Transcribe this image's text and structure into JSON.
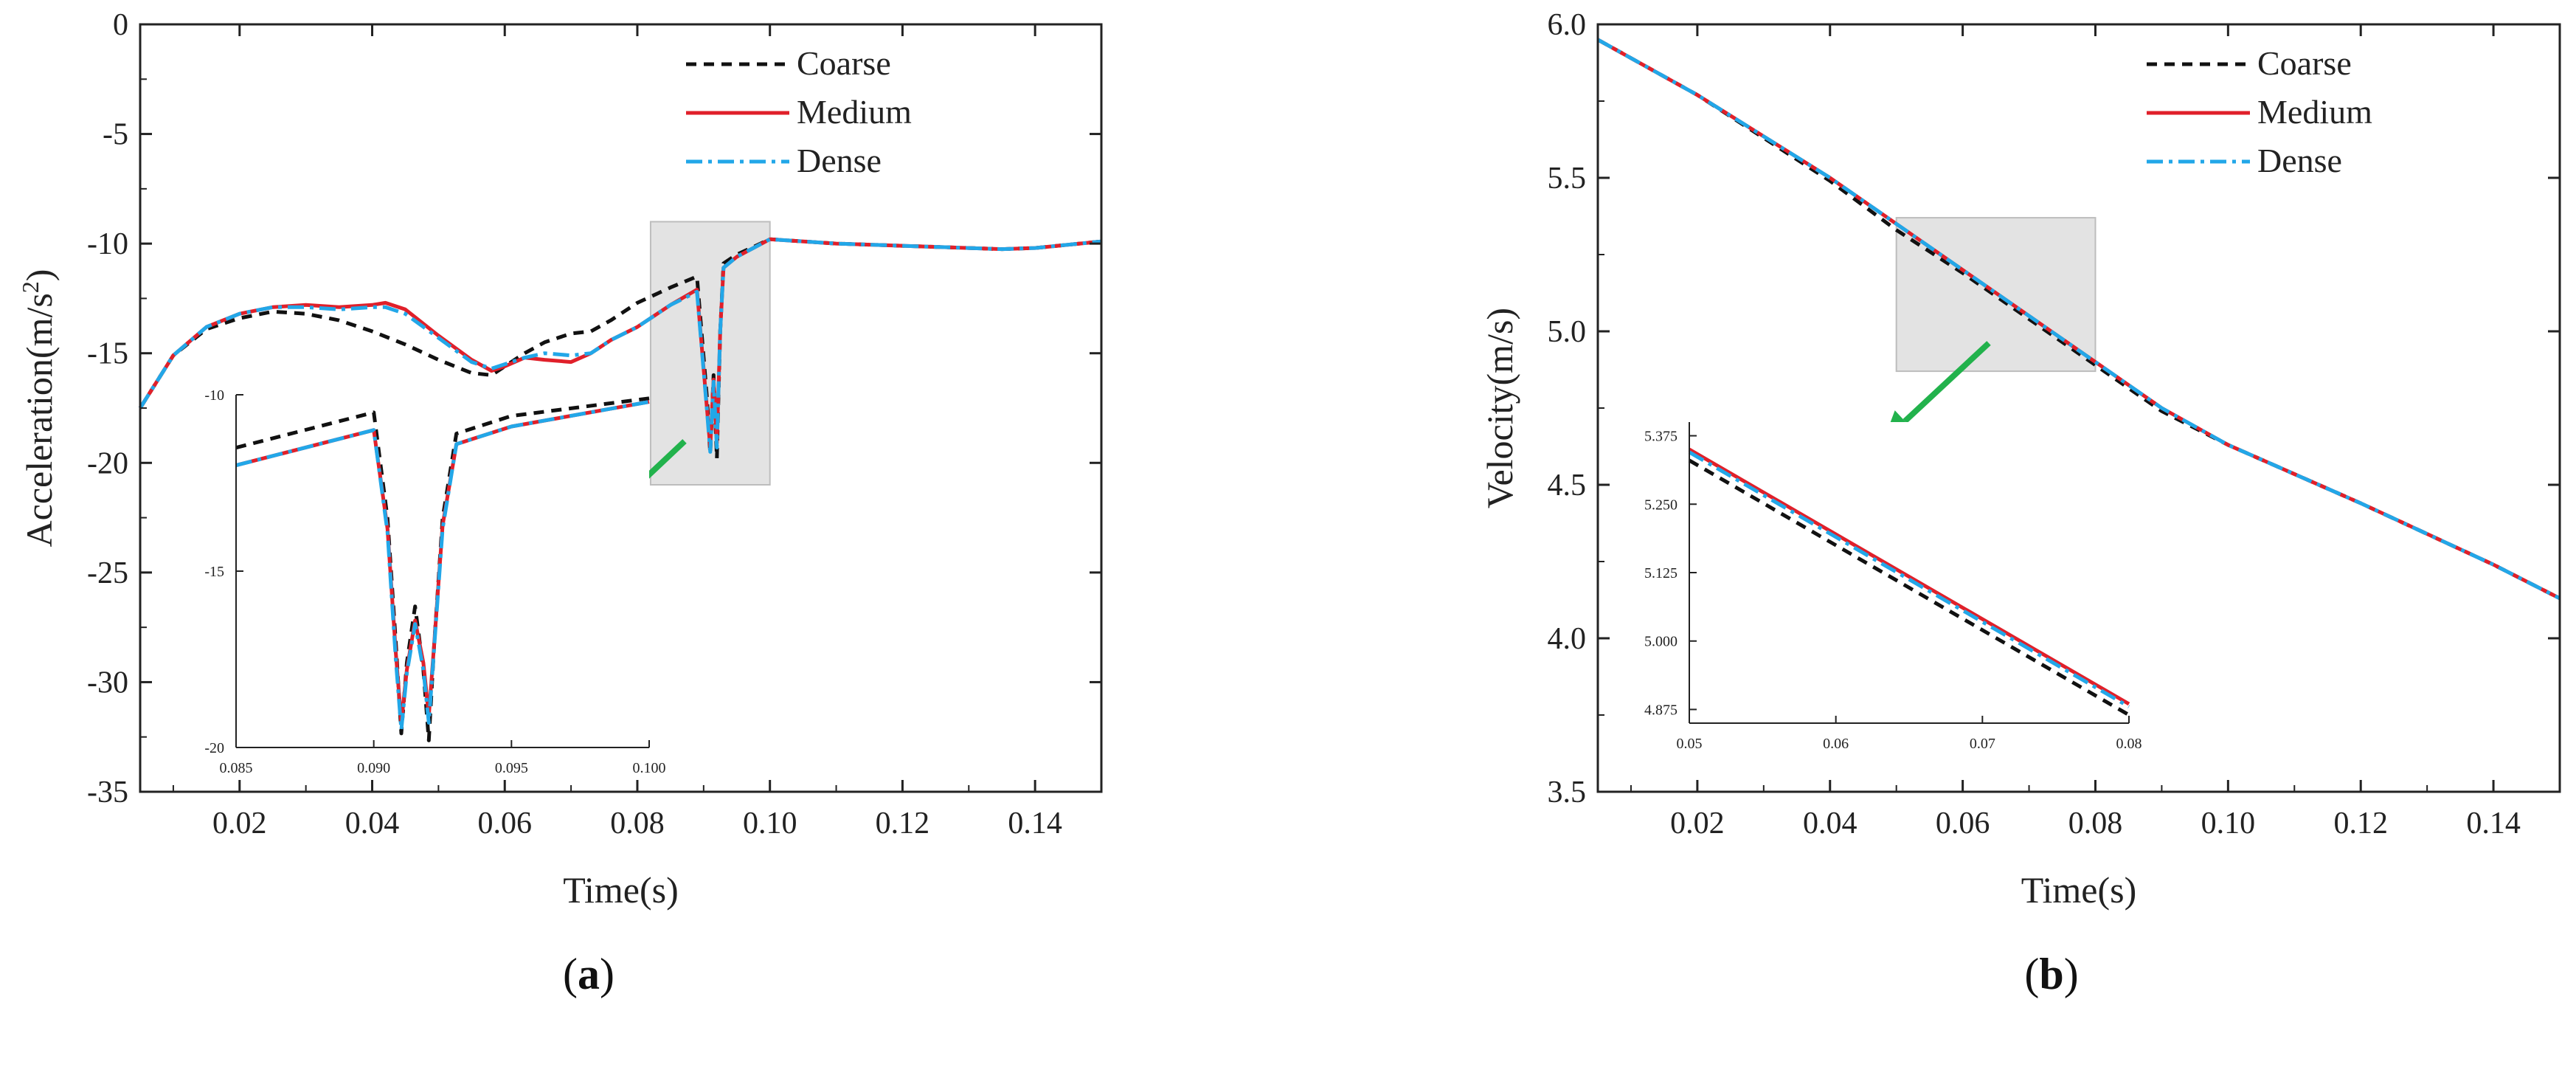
{
  "colors": {
    "coarse": "#111111",
    "medium": "#e0202a",
    "dense": "#22a7e8",
    "arrow": "#22b24c",
    "highlight": "#d9d9d9"
  },
  "legend": [
    "Coarse",
    "Medium",
    "Dense"
  ],
  "chart_data": [
    {
      "type": "line",
      "caption_letter": "a",
      "xlabel": "Time(s)",
      "ylabel_main": "Acceleration(m/s",
      "ylabel_sup": "2",
      "ylabel_tail": ")",
      "xlim": [
        0.005,
        0.15
      ],
      "ylim": [
        -35,
        0
      ],
      "xticks": [
        "0.02",
        "0.04",
        "0.06",
        "0.08",
        "0.10",
        "0.12",
        "0.14"
      ],
      "yticks": [
        "0",
        "-5",
        "-10",
        "-15",
        "-20",
        "-25",
        "-30",
        "-35"
      ],
      "highlight_box": {
        "x": [
          0.082,
          0.1
        ],
        "y": [
          -21,
          -9
        ]
      },
      "series": [
        {
          "name": "Coarse",
          "style": "dashed",
          "x": [
            0.005,
            0.01,
            0.015,
            0.02,
            0.025,
            0.03,
            0.035,
            0.04,
            0.045,
            0.05,
            0.055,
            0.058,
            0.06,
            0.063,
            0.066,
            0.07,
            0.073,
            0.076,
            0.08,
            0.085,
            0.089,
            0.0905,
            0.091,
            0.0915,
            0.092,
            0.0925,
            0.093,
            0.095,
            0.1,
            0.11,
            0.12,
            0.13,
            0.135,
            0.14,
            0.15
          ],
          "y": [
            -17.5,
            -15.1,
            -13.9,
            -13.4,
            -13.1,
            -13.2,
            -13.5,
            -14,
            -14.6,
            -15.3,
            -15.9,
            -16,
            -15.6,
            -15,
            -14.5,
            -14.1,
            -14,
            -13.5,
            -12.7,
            -12,
            -11.5,
            -17,
            -19.6,
            -16,
            -19.8,
            -14,
            -10.9,
            -10.5,
            -9.8,
            -10,
            -10.1,
            -10.2,
            -10.25,
            -10.2,
            -9.9
          ]
        },
        {
          "name": "Medium",
          "style": "solid",
          "x": [
            0.005,
            0.01,
            0.015,
            0.02,
            0.025,
            0.03,
            0.035,
            0.04,
            0.042,
            0.045,
            0.05,
            0.055,
            0.058,
            0.06,
            0.063,
            0.066,
            0.07,
            0.073,
            0.076,
            0.08,
            0.085,
            0.089,
            0.0905,
            0.091,
            0.0915,
            0.092,
            0.0925,
            0.093,
            0.095,
            0.1,
            0.11,
            0.12,
            0.13,
            0.135,
            0.14,
            0.15
          ],
          "y": [
            -17.5,
            -15.1,
            -13.8,
            -13.2,
            -12.9,
            -12.8,
            -12.9,
            -12.8,
            -12.7,
            -13,
            -14.2,
            -15.3,
            -15.8,
            -15.6,
            -15.2,
            -15.3,
            -15.4,
            -15,
            -14.4,
            -13.8,
            -12.8,
            -12.1,
            -17.5,
            -19.3,
            -16.2,
            -19.1,
            -14,
            -11.1,
            -10.6,
            -9.8,
            -10,
            -10.1,
            -10.2,
            -10.25,
            -10.2,
            -9.9
          ]
        },
        {
          "name": "Dense",
          "style": "dashdot",
          "x": [
            0.005,
            0.01,
            0.015,
            0.02,
            0.025,
            0.03,
            0.035,
            0.04,
            0.042,
            0.045,
            0.05,
            0.055,
            0.058,
            0.06,
            0.063,
            0.066,
            0.07,
            0.073,
            0.076,
            0.08,
            0.085,
            0.089,
            0.0905,
            0.091,
            0.0915,
            0.092,
            0.0925,
            0.093,
            0.095,
            0.1,
            0.11,
            0.12,
            0.13,
            0.135,
            0.14,
            0.15
          ],
          "y": [
            -17.5,
            -15.1,
            -13.8,
            -13.2,
            -12.9,
            -12.9,
            -13,
            -12.9,
            -12.9,
            -13.2,
            -14.3,
            -15.4,
            -15.7,
            -15.5,
            -15.2,
            -15,
            -15.1,
            -15,
            -14.4,
            -13.8,
            -12.8,
            -12.2,
            -17.6,
            -19.5,
            -16.3,
            -19.3,
            -14,
            -11.1,
            -10.6,
            -9.8,
            -10,
            -10.1,
            -10.2,
            -10.25,
            -10.2,
            -9.9
          ]
        }
      ],
      "inset": {
        "xlim": [
          0.085,
          0.1
        ],
        "ylim": [
          -20,
          -10
        ],
        "xticks": [
          "0.085",
          "0.090",
          "0.095",
          "0.100"
        ],
        "yticks": [
          "-10",
          "-15",
          "-20"
        ],
        "series": [
          {
            "name": "Coarse",
            "style": "dashed",
            "x": [
              0.085,
              0.09,
              0.0905,
              0.0908,
              0.091,
              0.0912,
              0.0915,
              0.0918,
              0.092,
              0.0922,
              0.0925,
              0.093,
              0.095,
              0.1
            ],
            "y": [
              -11.5,
              -10.5,
              -13.5,
              -17,
              -19.6,
              -17.6,
              -16,
              -17.8,
              -19.8,
              -17,
              -13.5,
              -11.1,
              -10.6,
              -10.1
            ]
          },
          {
            "name": "Medium",
            "style": "solid",
            "x": [
              0.085,
              0.09,
              0.0905,
              0.0908,
              0.091,
              0.0912,
              0.0915,
              0.0918,
              0.092,
              0.0922,
              0.0925,
              0.093,
              0.095,
              0.1
            ],
            "y": [
              -12,
              -11,
              -13.8,
              -17.3,
              -19.3,
              -17.8,
              -16.4,
              -17.6,
              -19.1,
              -17,
              -13.7,
              -11.4,
              -10.9,
              -10.2
            ]
          },
          {
            "name": "Dense",
            "style": "dashdot",
            "x": [
              0.085,
              0.09,
              0.0905,
              0.0908,
              0.091,
              0.0912,
              0.0915,
              0.0918,
              0.092,
              0.0922,
              0.0925,
              0.093,
              0.095,
              0.1
            ],
            "y": [
              -12,
              -11,
              -13.9,
              -17.5,
              -19.5,
              -17.9,
              -16.5,
              -17.8,
              -19.3,
              -17.1,
              -13.8,
              -11.4,
              -10.9,
              -10.2
            ]
          }
        ]
      }
    },
    {
      "type": "line",
      "caption_letter": "b",
      "xlabel": "Time(s)",
      "ylabel_main": "Velocity(m/s)",
      "ylabel_sup": "",
      "ylabel_tail": "",
      "xlim": [
        0.005,
        0.15
      ],
      "ylim": [
        3.5,
        6.0
      ],
      "xticks": [
        "0.02",
        "0.04",
        "0.06",
        "0.08",
        "0.10",
        "0.12",
        "0.14"
      ],
      "yticks": [
        "6.0",
        "5.5",
        "5.0",
        "4.5",
        "4.0",
        "3.5"
      ],
      "highlight_box": {
        "x": [
          0.05,
          0.08
        ],
        "y": [
          4.87,
          5.37
        ]
      },
      "series": [
        {
          "name": "Coarse",
          "style": "dashed",
          "x": [
            0.005,
            0.02,
            0.04,
            0.05,
            0.06,
            0.07,
            0.08,
            0.09,
            0.1,
            0.12,
            0.14,
            0.15
          ],
          "y": [
            5.95,
            5.77,
            5.49,
            5.33,
            5.19,
            5.04,
            4.89,
            4.74,
            4.63,
            4.44,
            4.24,
            4.13
          ]
        },
        {
          "name": "Medium",
          "style": "solid",
          "x": [
            0.005,
            0.02,
            0.04,
            0.05,
            0.06,
            0.07,
            0.08,
            0.09,
            0.1,
            0.12,
            0.14,
            0.15
          ],
          "y": [
            5.95,
            5.77,
            5.5,
            5.35,
            5.2,
            5.05,
            4.9,
            4.75,
            4.63,
            4.44,
            4.24,
            4.13
          ]
        },
        {
          "name": "Dense",
          "style": "dashdot",
          "x": [
            0.005,
            0.02,
            0.04,
            0.05,
            0.06,
            0.07,
            0.08,
            0.09,
            0.1,
            0.12,
            0.14,
            0.15
          ],
          "y": [
            5.95,
            5.77,
            5.5,
            5.35,
            5.2,
            5.05,
            4.9,
            4.75,
            4.63,
            4.44,
            4.24,
            4.13
          ]
        }
      ],
      "inset": {
        "xlim": [
          0.05,
          0.08
        ],
        "ylim": [
          4.85,
          5.4
        ],
        "xticks": [
          "0.05",
          "0.06",
          "0.07",
          "0.08"
        ],
        "yticks": [
          "5.375",
          "5.250",
          "5.125",
          "5.000",
          "4.875"
        ],
        "series": [
          {
            "name": "Coarse",
            "style": "dashed",
            "x": [
              0.05,
              0.08
            ],
            "y": [
              5.33,
              4.865
            ]
          },
          {
            "name": "Medium",
            "style": "solid",
            "x": [
              0.05,
              0.08
            ],
            "y": [
              5.35,
              4.885
            ]
          },
          {
            "name": "Dense",
            "style": "dashdot",
            "x": [
              0.05,
              0.08
            ],
            "y": [
              5.345,
              4.88
            ]
          }
        ]
      }
    }
  ]
}
